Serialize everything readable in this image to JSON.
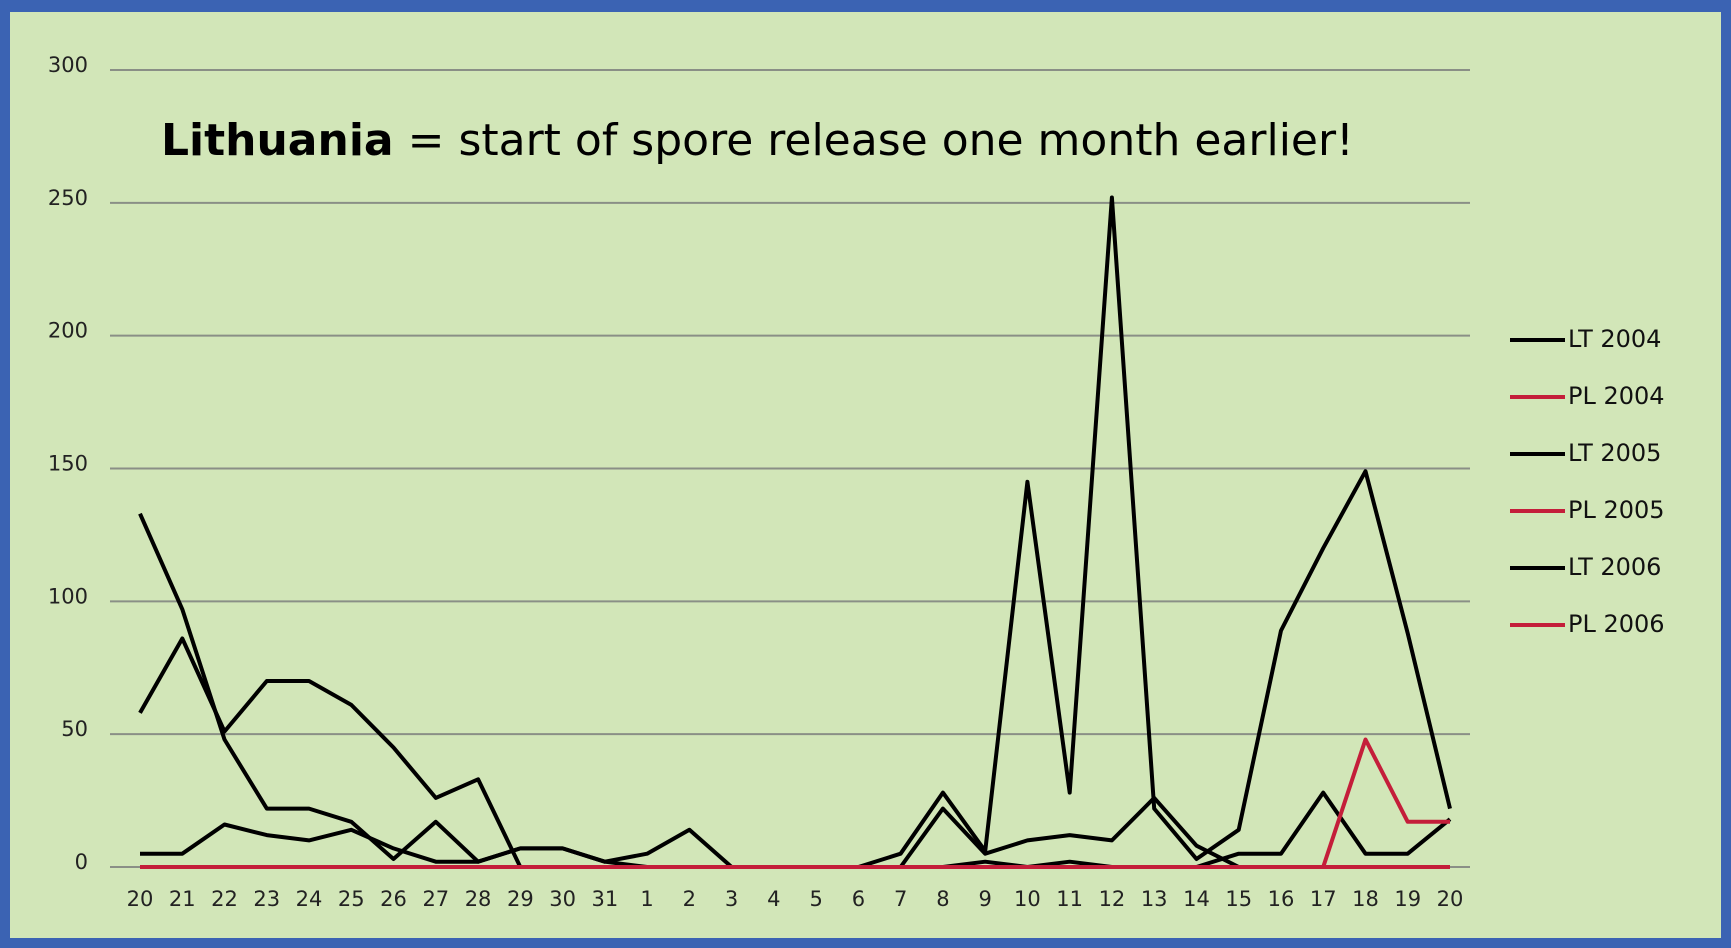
{
  "chart_data": {
    "type": "line",
    "title_parts": [
      "Lithuania",
      "= start of spore release one month earlier!"
    ],
    "categories": [
      "20",
      "21",
      "22",
      "23",
      "24",
      "25",
      "26",
      "27",
      "28",
      "29",
      "30",
      "31",
      "1",
      "2",
      "3",
      "4",
      "5",
      "6",
      "7",
      "8",
      "9",
      "10",
      "11",
      "12",
      "13",
      "14",
      "15",
      "16",
      "17",
      "18",
      "19",
      "20"
    ],
    "ylim": [
      0,
      300
    ],
    "yticks": [
      0,
      50,
      100,
      150,
      200,
      250,
      300
    ],
    "grid": true,
    "legend": "right",
    "series": [
      {
        "name": "LT 2004",
        "color": "#000000",
        "values": [
          133,
          97,
          48,
          22,
          22,
          17,
          3,
          17,
          2,
          7,
          7,
          2,
          5,
          14,
          0,
          0,
          0,
          0,
          0,
          22,
          5,
          10,
          12,
          10,
          26,
          8,
          0,
          0,
          0,
          0,
          0,
          0
        ]
      },
      {
        "name": "PL 2004",
        "color": "#c41e3a",
        "values": [
          0,
          0,
          0,
          0,
          0,
          0,
          0,
          0,
          0,
          0,
          0,
          0,
          0,
          0,
          0,
          0,
          0,
          0,
          0,
          0,
          0,
          0,
          0,
          0,
          0,
          0,
          0,
          0,
          0,
          0,
          0,
          0
        ]
      },
      {
        "name": "LT 2005",
        "color": "#000000",
        "values": [
          58,
          86,
          51,
          70,
          70,
          61,
          45,
          26,
          33,
          0,
          0,
          0,
          0,
          0,
          0,
          0,
          0,
          0,
          5,
          28,
          6,
          145,
          28,
          252,
          22,
          3,
          14,
          89,
          120,
          149,
          88,
          22
        ]
      },
      {
        "name": "PL 2005",
        "color": "#c41e3a",
        "values": [
          0,
          0,
          0,
          0,
          0,
          0,
          0,
          0,
          0,
          0,
          0,
          0,
          0,
          0,
          0,
          0,
          0,
          0,
          0,
          0,
          0,
          0,
          0,
          0,
          0,
          0,
          0,
          0,
          0,
          48,
          17,
          17
        ]
      },
      {
        "name": "LT 2006",
        "color": "#000000",
        "values": [
          5,
          5,
          16,
          12,
          10,
          14,
          7,
          2,
          2,
          7,
          7,
          2,
          0,
          0,
          0,
          0,
          0,
          0,
          0,
          0,
          2,
          0,
          2,
          0,
          0,
          0,
          5,
          5,
          28,
          5,
          5,
          18
        ]
      },
      {
        "name": "PL 2006",
        "color": "#c41e3a",
        "values": [
          0,
          0,
          0,
          0,
          0,
          0,
          0,
          0,
          0,
          0,
          0,
          0,
          0,
          0,
          0,
          0,
          0,
          0,
          0,
          0,
          0,
          0,
          0,
          0,
          0,
          0,
          0,
          0,
          0,
          0,
          0,
          0
        ]
      }
    ]
  }
}
